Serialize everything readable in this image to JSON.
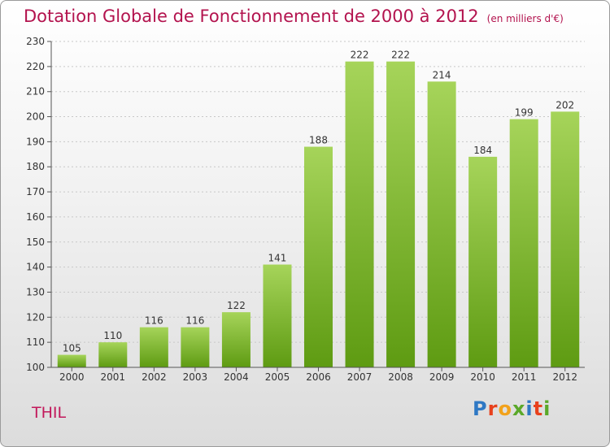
{
  "header": {
    "title": "Dotation Globale de Fonctionnement de 2000 à 2012",
    "subtitle": "(en milliers d'€)"
  },
  "footer": {
    "commune": "THIL",
    "logo": "Proxiti"
  },
  "colors": {
    "title": "#b3134e",
    "bar_top": "#a6d45a",
    "bar_bottom": "#5e9b12",
    "logo_letters": [
      "#2e78c4",
      "#e8411d",
      "#f2a21b",
      "#5aa829",
      "#2e78c4",
      "#e8411d",
      "#5aa829"
    ]
  },
  "chart_data": {
    "type": "bar",
    "title": "Dotation Globale de Fonctionnement de 2000 à 2012",
    "subtitle": "(en milliers d'€)",
    "categories": [
      "2000",
      "2001",
      "2002",
      "2003",
      "2004",
      "2005",
      "2006",
      "2007",
      "2008",
      "2009",
      "2010",
      "2011",
      "2012"
    ],
    "values": [
      105,
      110,
      116,
      116,
      122,
      141,
      188,
      222,
      222,
      214,
      184,
      199,
      202
    ],
    "ylim": [
      100,
      230
    ],
    "yticks": [
      100,
      110,
      120,
      130,
      140,
      150,
      160,
      170,
      180,
      190,
      200,
      210,
      220,
      230
    ],
    "grid": "horizontal",
    "data_labels": true
  }
}
